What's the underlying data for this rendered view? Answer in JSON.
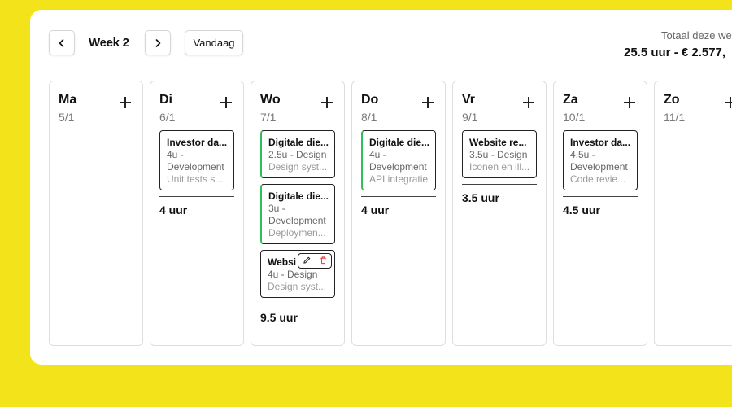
{
  "header": {
    "week_label": "Week 2",
    "today_label": "Vandaag",
    "total_label": "Totaal deze we",
    "total_value": "25.5 uur - € 2.577,"
  },
  "days": [
    {
      "name": "Ma",
      "date": "5/1",
      "entries": [],
      "total": ""
    },
    {
      "name": "Di",
      "date": "6/1",
      "entries": [
        {
          "title": "Investor da...",
          "sub": "4u - Development",
          "desc": "Unit tests s...",
          "accent": "none"
        }
      ],
      "total": "4 uur"
    },
    {
      "name": "Wo",
      "date": "7/1",
      "entries": [
        {
          "title": "Digitale die...",
          "sub": "2.5u - Design",
          "desc": "Design syst...",
          "accent": "green"
        },
        {
          "title": "Digitale die...",
          "sub": "3u - Development",
          "desc": "Deploymen...",
          "accent": "green"
        },
        {
          "title": "Websi",
          "sub": "4u - Design",
          "desc": "Design syst...",
          "accent": "none",
          "actions": true
        }
      ],
      "total": "9.5 uur"
    },
    {
      "name": "Do",
      "date": "8/1",
      "entries": [
        {
          "title": "Digitale die...",
          "sub": "4u - Development",
          "desc": "API integratie",
          "accent": "green"
        }
      ],
      "total": "4 uur"
    },
    {
      "name": "Vr",
      "date": "9/1",
      "entries": [
        {
          "title": "Website re...",
          "sub": "3.5u - Design",
          "desc": "Iconen en ill...",
          "accent": "none"
        }
      ],
      "total": "3.5 uur"
    },
    {
      "name": "Za",
      "date": "10/1",
      "entries": [
        {
          "title": "Investor da...",
          "sub": "4.5u - Development",
          "desc": "Code revie...",
          "accent": "none"
        }
      ],
      "total": "4.5 uur"
    },
    {
      "name": "Zo",
      "date": "11/1",
      "entries": [],
      "total": ""
    }
  ],
  "colors": {
    "background": "#f2e31b",
    "accent_green": "#2fbf5a",
    "delete_red": "#e03b3b"
  },
  "icons": {
    "prev": "chevron-left-icon",
    "next": "chevron-right-icon",
    "add": "plus-icon",
    "edit": "pencil-icon",
    "delete": "trash-icon"
  }
}
